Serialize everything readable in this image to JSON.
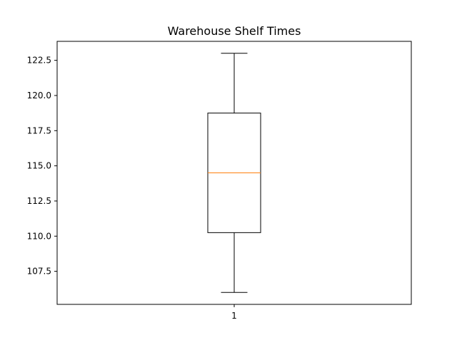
{
  "chart_data": {
    "type": "box",
    "title": "Warehouse Shelf Times",
    "xlabel": "",
    "ylabel": "",
    "categories": [
      "1"
    ],
    "boxes": [
      {
        "category": "1",
        "whisker_low": 106.0,
        "q1": 110.25,
        "median": 114.5,
        "q3": 118.75,
        "whisker_high": 123.0
      }
    ],
    "ylim": [
      105.15,
      123.85
    ],
    "y_ticks": [
      107.5,
      110.0,
      112.5,
      115.0,
      117.5,
      120.0,
      122.5
    ],
    "y_tick_labels": [
      "107.5",
      "110.0",
      "112.5",
      "115.0",
      "117.5",
      "120.0",
      "122.5"
    ],
    "grid": false,
    "colors": {
      "box": "#000000",
      "median": "#ff7f0e",
      "axes": "#000000",
      "background": "#ffffff"
    }
  }
}
